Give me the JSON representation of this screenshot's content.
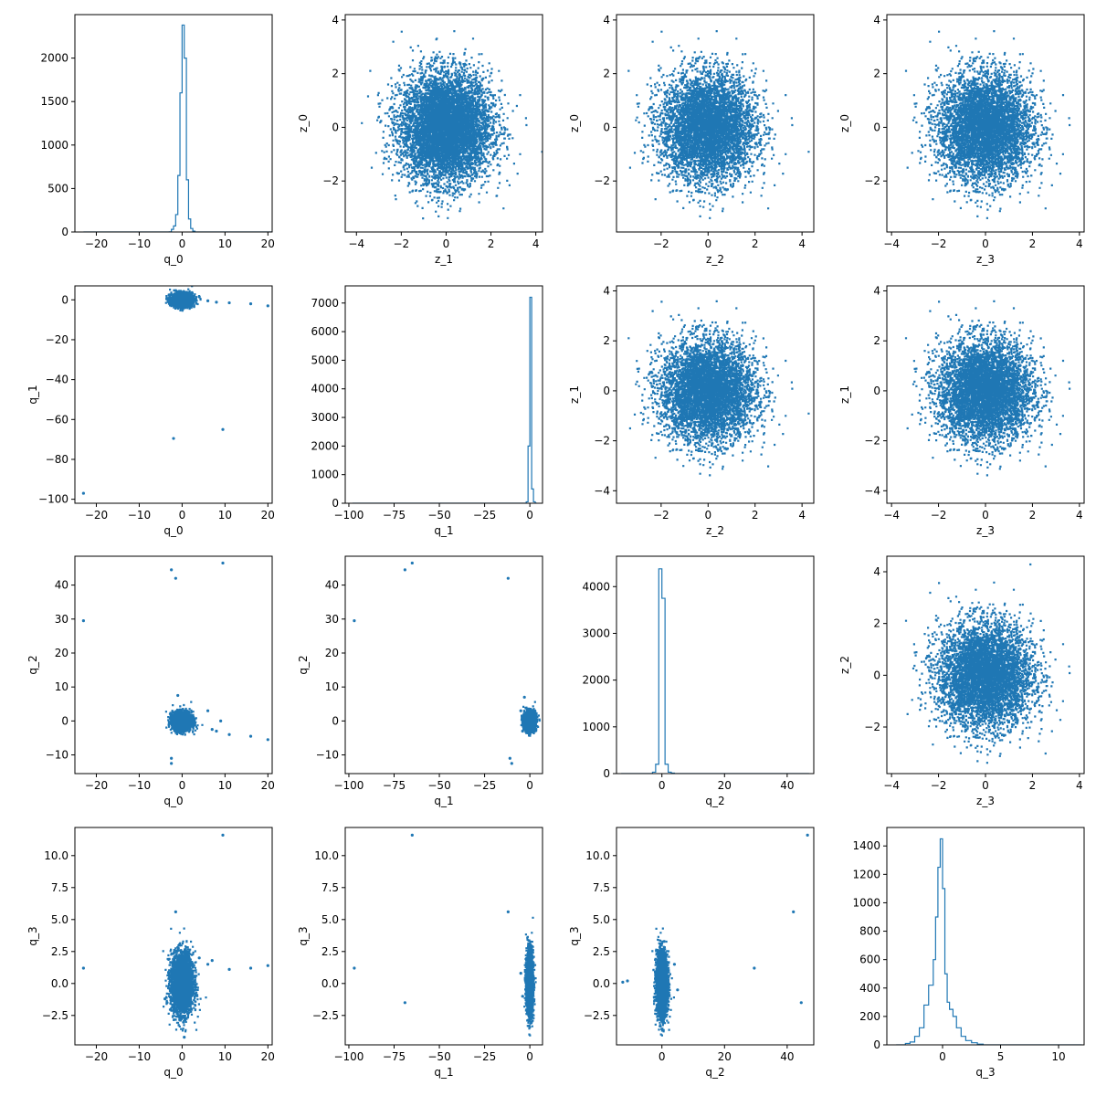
{
  "figure": {
    "accent_color": "#1f77b4"
  },
  "chart_data": [
    {
      "type": "histogram",
      "panel": "0-0",
      "xlabel": "q_0",
      "ylabel": "",
      "xlim": [
        -25,
        21
      ],
      "ylim": [
        0,
        2500
      ],
      "xticks": [
        -20,
        -10,
        0,
        10,
        20
      ],
      "yticks": [
        0,
        500,
        1000,
        1500,
        2000
      ],
      "bins": [
        [
          -23,
          0
        ],
        [
          -3,
          2
        ],
        [
          -2.5,
          30
        ],
        [
          -2,
          70
        ],
        [
          -1.5,
          200
        ],
        [
          -1,
          650
        ],
        [
          -0.5,
          1600
        ],
        [
          0,
          2380
        ],
        [
          0.5,
          2000
        ],
        [
          1,
          600
        ],
        [
          1.5,
          150
        ],
        [
          2,
          40
        ],
        [
          2.5,
          10
        ],
        [
          3,
          0
        ],
        [
          21,
          0
        ]
      ]
    },
    {
      "type": "scatter",
      "panel": "0-1",
      "xlabel": "z_1",
      "ylabel": "z_0",
      "xlim": [
        -4.5,
        4.3
      ],
      "ylim": [
        -3.9,
        4.2
      ],
      "xticks": [
        -4,
        -2,
        0,
        2,
        4
      ],
      "yticks": [
        -2,
        0,
        2,
        4
      ],
      "distribution": {
        "kind": "gaussian",
        "mean": [
          0,
          0
        ],
        "std": [
          1,
          1
        ],
        "n": 10000
      }
    },
    {
      "type": "scatter",
      "panel": "0-2",
      "xlabel": "z_2",
      "ylabel": "z_0",
      "xlim": [
        -3.9,
        4.5
      ],
      "ylim": [
        -3.9,
        4.2
      ],
      "xticks": [
        -2,
        0,
        2,
        4
      ],
      "yticks": [
        -2,
        0,
        2,
        4
      ],
      "distribution": {
        "kind": "gaussian",
        "mean": [
          0,
          0
        ],
        "std": [
          1,
          1
        ],
        "n": 10000
      }
    },
    {
      "type": "scatter",
      "panel": "0-3",
      "xlabel": "z_3",
      "ylabel": "z_0",
      "xlim": [
        -4.2,
        4.2
      ],
      "ylim": [
        -3.9,
        4.2
      ],
      "xticks": [
        -4,
        -2,
        0,
        2,
        4
      ],
      "yticks": [
        -2,
        0,
        2,
        4
      ],
      "distribution": {
        "kind": "gaussian",
        "mean": [
          0,
          0
        ],
        "std": [
          1,
          1
        ],
        "n": 10000
      }
    },
    {
      "type": "scatter",
      "panel": "1-0",
      "xlabel": "q_0",
      "ylabel": "q_1",
      "xlim": [
        -25,
        21
      ],
      "ylim": [
        -102,
        7
      ],
      "xticks": [
        -20,
        -10,
        0,
        10,
        20
      ],
      "yticks": [
        -100,
        -80,
        -60,
        -40,
        -20,
        0
      ],
      "distribution": {
        "kind": "gaussian",
        "mean": [
          0,
          0
        ],
        "std": [
          1.2,
          1.6
        ],
        "n": 3000
      },
      "outliers": [
        [
          -23,
          -97
        ],
        [
          -2,
          -69.5
        ],
        [
          9.5,
          -65
        ],
        [
          16,
          -2
        ],
        [
          20,
          -3
        ],
        [
          11,
          -1.5
        ],
        [
          8,
          -1.2
        ],
        [
          6,
          -0.5
        ],
        [
          4,
          1.5
        ],
        [
          -3,
          2.5
        ]
      ]
    },
    {
      "type": "histogram",
      "panel": "1-1",
      "xlabel": "q_1",
      "ylabel": "",
      "xlim": [
        -102,
        7
      ],
      "ylim": [
        0,
        7600
      ],
      "xticks": [
        -100,
        -75,
        -50,
        -25,
        0
      ],
      "yticks": [
        0,
        1000,
        2000,
        3000,
        4000,
        5000,
        6000,
        7000
      ],
      "bins": [
        [
          -98,
          0
        ],
        [
          -2,
          50
        ],
        [
          -1,
          2000
        ],
        [
          0,
          7200
        ],
        [
          1,
          500
        ],
        [
          2,
          50
        ],
        [
          3,
          0
        ],
        [
          4,
          0
        ]
      ]
    },
    {
      "type": "scatter",
      "panel": "1-2",
      "xlabel": "z_2",
      "ylabel": "z_1",
      "xlim": [
        -3.9,
        4.5
      ],
      "ylim": [
        -4.5,
        4.2
      ],
      "xticks": [
        -2,
        0,
        2,
        4
      ],
      "yticks": [
        -4,
        -2,
        0,
        2,
        4
      ],
      "distribution": {
        "kind": "gaussian",
        "mean": [
          0,
          0
        ],
        "std": [
          1,
          1
        ],
        "n": 10000
      }
    },
    {
      "type": "scatter",
      "panel": "1-3",
      "xlabel": "z_3",
      "ylabel": "z_1",
      "xlim": [
        -4.2,
        4.2
      ],
      "ylim": [
        -4.5,
        4.2
      ],
      "xticks": [
        -4,
        -2,
        0,
        2,
        4
      ],
      "yticks": [
        -4,
        -2,
        0,
        2,
        4
      ],
      "distribution": {
        "kind": "gaussian",
        "mean": [
          0,
          0
        ],
        "std": [
          1,
          1
        ],
        "n": 10000
      }
    },
    {
      "type": "scatter",
      "panel": "2-0",
      "xlabel": "q_0",
      "ylabel": "q_2",
      "xlim": [
        -25,
        21
      ],
      "ylim": [
        -15.5,
        48.5
      ],
      "xticks": [
        -20,
        -10,
        0,
        10,
        20
      ],
      "yticks": [
        -10,
        0,
        10,
        20,
        30,
        40
      ],
      "distribution": {
        "kind": "gaussian",
        "mean": [
          0,
          0
        ],
        "std": [
          1.1,
          1.3
        ],
        "n": 3000
      },
      "outliers": [
        [
          -23,
          29.5
        ],
        [
          -2.5,
          44.5
        ],
        [
          -1.5,
          42
        ],
        [
          9.5,
          46.5
        ],
        [
          -2.5,
          -11
        ],
        [
          -2.5,
          -12.5
        ],
        [
          11,
          -4
        ],
        [
          16,
          -4.5
        ],
        [
          20,
          -5.5
        ],
        [
          7,
          -2.5
        ],
        [
          8,
          -3
        ],
        [
          9,
          0
        ],
        [
          -1,
          7.5
        ],
        [
          6,
          3
        ]
      ]
    },
    {
      "type": "scatter",
      "panel": "2-1",
      "xlabel": "q_1",
      "ylabel": "q_2",
      "xlim": [
        -102,
        7
      ],
      "ylim": [
        -15.5,
        48.5
      ],
      "xticks": [
        -100,
        -75,
        -50,
        -25,
        0
      ],
      "yticks": [
        -10,
        0,
        10,
        20,
        30,
        40
      ],
      "distribution": {
        "kind": "gaussian",
        "mean": [
          0,
          0
        ],
        "std": [
          1.5,
          1.3
        ],
        "n": 3000
      },
      "outliers": [
        [
          -97,
          29.5
        ],
        [
          -69,
          44.5
        ],
        [
          -65,
          46.5
        ],
        [
          -12,
          42
        ],
        [
          -11,
          -11
        ],
        [
          -10,
          -12.5
        ],
        [
          -3,
          7
        ],
        [
          -5,
          3
        ],
        [
          -4,
          -3
        ]
      ]
    },
    {
      "type": "histogram",
      "panel": "2-2",
      "xlabel": "q_2",
      "ylabel": "",
      "xlim": [
        -14.5,
        48.5
      ],
      "ylim": [
        0,
        4650
      ],
      "xticks": [
        0,
        20,
        40
      ],
      "yticks": [
        0,
        1000,
        2000,
        3000,
        4000
      ],
      "bins": [
        [
          -13,
          0
        ],
        [
          -3,
          30
        ],
        [
          -2,
          200
        ],
        [
          -1,
          4380
        ],
        [
          0,
          3750
        ],
        [
          1,
          200
        ],
        [
          2,
          30
        ],
        [
          3,
          10
        ],
        [
          4,
          0
        ],
        [
          47,
          0
        ]
      ]
    },
    {
      "type": "scatter",
      "panel": "2-3",
      "xlabel": "z_3",
      "ylabel": "z_2",
      "xlim": [
        -4.2,
        4.2
      ],
      "ylim": [
        -3.8,
        4.6
      ],
      "xticks": [
        -4,
        -2,
        0,
        2,
        4
      ],
      "yticks": [
        -2,
        0,
        2,
        4
      ],
      "distribution": {
        "kind": "gaussian",
        "mean": [
          0,
          0
        ],
        "std": [
          1,
          1
        ],
        "n": 10000
      }
    },
    {
      "type": "scatter",
      "panel": "3-0",
      "xlabel": "q_0",
      "ylabel": "q_3",
      "xlim": [
        -25,
        21
      ],
      "ylim": [
        -4.8,
        12.2
      ],
      "xticks": [
        -20,
        -10,
        0,
        10,
        20
      ],
      "yticks": [
        -2.5,
        0.0,
        2.5,
        5.0,
        7.5,
        10.0
      ],
      "distribution": {
        "kind": "gaussian",
        "mean": [
          0,
          0
        ],
        "std": [
          1.3,
          1.2
        ],
        "n": 3000
      },
      "outliers": [
        [
          -23,
          1.2
        ],
        [
          -1.5,
          5.6
        ],
        [
          9.5,
          11.6
        ],
        [
          11,
          1.1
        ],
        [
          16,
          1.2
        ],
        [
          20,
          1.4
        ],
        [
          7,
          1.8
        ],
        [
          6,
          1.5
        ],
        [
          4,
          2.0
        ],
        [
          -4,
          -1.2
        ],
        [
          -3.5,
          -1.5
        ],
        [
          0.5,
          -4.2
        ]
      ]
    },
    {
      "type": "scatter",
      "panel": "3-1",
      "xlabel": "q_1",
      "ylabel": "q_3",
      "xlim": [
        -102,
        7
      ],
      "ylim": [
        -4.8,
        12.2
      ],
      "xticks": [
        -100,
        -75,
        -50,
        -25,
        0
      ],
      "yticks": [
        -2.5,
        0.0,
        2.5,
        5.0,
        7.5,
        10.0
      ],
      "distribution": {
        "kind": "gaussian",
        "mean": [
          0,
          0
        ],
        "std": [
          0.9,
          1.2
        ],
        "n": 3000
      },
      "outliers": [
        [
          -97,
          1.2
        ],
        [
          -69,
          -1.5
        ],
        [
          -65,
          11.6
        ],
        [
          -12,
          5.6
        ],
        [
          -5,
          0.8
        ],
        [
          -4,
          -1
        ]
      ]
    },
    {
      "type": "scatter",
      "panel": "3-2",
      "xlabel": "q_2",
      "ylabel": "q_3",
      "xlim": [
        -14.5,
        48.5
      ],
      "ylim": [
        -4.8,
        12.2
      ],
      "xticks": [
        0,
        20,
        40
      ],
      "yticks": [
        -2.5,
        0.0,
        2.5,
        5.0,
        7.5,
        10.0
      ],
      "distribution": {
        "kind": "gaussian",
        "mean": [
          0,
          0
        ],
        "std": [
          0.9,
          1.2
        ],
        "n": 3000
      },
      "outliers": [
        [
          -11,
          0.2
        ],
        [
          -12.5,
          0.1
        ],
        [
          29.5,
          1.2
        ],
        [
          42,
          5.6
        ],
        [
          44.5,
          -1.5
        ],
        [
          46.5,
          11.6
        ],
        [
          4,
          1.5
        ],
        [
          5,
          -0.5
        ]
      ]
    },
    {
      "type": "histogram",
      "panel": "3-3",
      "xlabel": "q_3",
      "ylabel": "",
      "xlim": [
        -4.8,
        12.2
      ],
      "ylim": [
        0,
        1530
      ],
      "xticks": [
        0,
        5,
        10
      ],
      "yticks": [
        0,
        200,
        400,
        600,
        800,
        1000,
        1200,
        1400
      ],
      "bins": [
        [
          -4,
          0
        ],
        [
          -3.2,
          10
        ],
        [
          -2.8,
          20
        ],
        [
          -2.4,
          60
        ],
        [
          -2.0,
          120
        ],
        [
          -1.6,
          280
        ],
        [
          -1.2,
          420
        ],
        [
          -0.8,
          600
        ],
        [
          -0.6,
          900
        ],
        [
          -0.4,
          1250
        ],
        [
          -0.2,
          1450
        ],
        [
          0.0,
          1100
        ],
        [
          0.2,
          500
        ],
        [
          0.4,
          300
        ],
        [
          0.6,
          250
        ],
        [
          0.9,
          200
        ],
        [
          1.2,
          120
        ],
        [
          1.6,
          60
        ],
        [
          2.0,
          30
        ],
        [
          2.5,
          15
        ],
        [
          3.0,
          5
        ],
        [
          3.5,
          0
        ],
        [
          12,
          0
        ]
      ]
    }
  ]
}
